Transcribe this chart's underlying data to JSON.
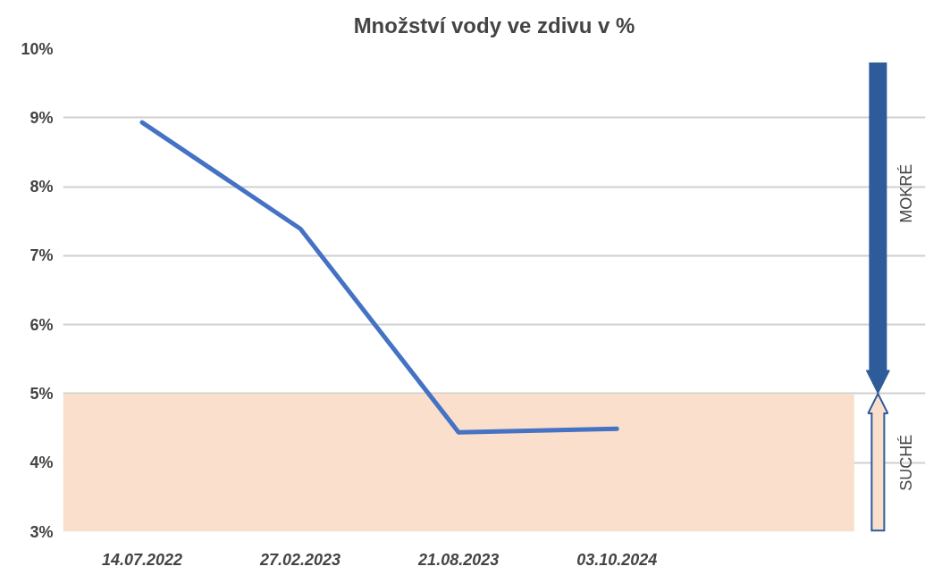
{
  "chart_data": {
    "type": "line",
    "title": "Množství vody ve zdivu v %",
    "categories": [
      "14.07.2022",
      "27.02.2023",
      "21.08.2023",
      "03.10.2024",
      null
    ],
    "series": [
      {
        "color": "#4472c4",
        "values": [
          8.93,
          7.39,
          4.44,
          4.49,
          null
        ]
      }
    ],
    "ylim": [
      3,
      10
    ],
    "yticks": [
      {
        "value": 3,
        "label": "3%"
      },
      {
        "value": 4,
        "label": "4%"
      },
      {
        "value": 5,
        "label": "5%"
      },
      {
        "value": 6,
        "label": "6%"
      },
      {
        "value": 7,
        "label": "7%"
      },
      {
        "value": 8,
        "label": "8%"
      },
      {
        "value": 9,
        "label": "9%"
      },
      {
        "value": 10,
        "label": "10%"
      }
    ],
    "grid": "y",
    "marker": "none",
    "line_style": "solid",
    "bands": [
      {
        "axis": "y",
        "from": 3,
        "to": 5,
        "label": "SUCHÉ",
        "color": "#f9dfcc"
      }
    ],
    "annotations": [
      "MOKRÉ"
    ]
  }
}
